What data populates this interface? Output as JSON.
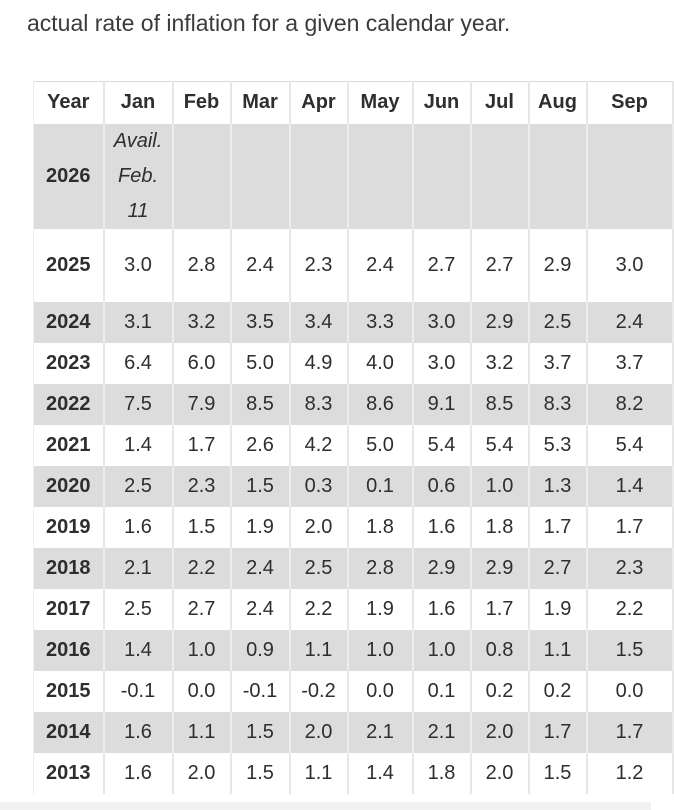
{
  "page": {
    "intro_text": "actual rate of inflation for a given calendar year."
  },
  "table": {
    "columns": [
      "Year",
      "Jan",
      "Feb",
      "Mar",
      "Apr",
      "May",
      "Jun",
      "Jul",
      "Aug",
      "Sep"
    ],
    "rows": [
      {
        "year": "2026",
        "note": "Avail. Feb. 11",
        "values": [
          "",
          "",
          "",
          "",
          "",
          "",
          "",
          "",
          ""
        ],
        "shaded": true
      },
      {
        "year": "2025",
        "values": [
          "3.0",
          "2.8",
          "2.4",
          "2.3",
          "2.4",
          "2.7",
          "2.7",
          "2.9",
          "3.0"
        ],
        "shaded": false,
        "tall": true
      },
      {
        "year": "2024",
        "values": [
          "3.1",
          "3.2",
          "3.5",
          "3.4",
          "3.3",
          "3.0",
          "2.9",
          "2.5",
          "2.4"
        ],
        "shaded": true
      },
      {
        "year": "2023",
        "values": [
          "6.4",
          "6.0",
          "5.0",
          "4.9",
          "4.0",
          "3.0",
          "3.2",
          "3.7",
          "3.7"
        ],
        "shaded": false
      },
      {
        "year": "2022",
        "values": [
          "7.5",
          "7.9",
          "8.5",
          "8.3",
          "8.6",
          "9.1",
          "8.5",
          "8.3",
          "8.2"
        ],
        "shaded": true
      },
      {
        "year": "2021",
        "values": [
          "1.4",
          "1.7",
          "2.6",
          "4.2",
          "5.0",
          "5.4",
          "5.4",
          "5.3",
          "5.4"
        ],
        "shaded": false
      },
      {
        "year": "2020",
        "values": [
          "2.5",
          "2.3",
          "1.5",
          "0.3",
          "0.1",
          "0.6",
          "1.0",
          "1.3",
          "1.4"
        ],
        "shaded": true
      },
      {
        "year": "2019",
        "values": [
          "1.6",
          "1.5",
          "1.9",
          "2.0",
          "1.8",
          "1.6",
          "1.8",
          "1.7",
          "1.7"
        ],
        "shaded": false
      },
      {
        "year": "2018",
        "values": [
          "2.1",
          "2.2",
          "2.4",
          "2.5",
          "2.8",
          "2.9",
          "2.9",
          "2.7",
          "2.3"
        ],
        "shaded": true
      },
      {
        "year": "2017",
        "values": [
          "2.5",
          "2.7",
          "2.4",
          "2.2",
          "1.9",
          "1.6",
          "1.7",
          "1.9",
          "2.2"
        ],
        "shaded": false
      },
      {
        "year": "2016",
        "values": [
          "1.4",
          "1.0",
          "0.9",
          "1.1",
          "1.0",
          "1.0",
          "0.8",
          "1.1",
          "1.5"
        ],
        "shaded": true
      },
      {
        "year": "2015",
        "values": [
          "-0.1",
          "0.0",
          "-0.1",
          "-0.2",
          "0.0",
          "0.1",
          "0.2",
          "0.2",
          "0.0"
        ],
        "shaded": false
      },
      {
        "year": "2014",
        "values": [
          "1.6",
          "1.1",
          "1.5",
          "2.0",
          "2.1",
          "2.1",
          "2.0",
          "1.7",
          "1.7"
        ],
        "shaded": true
      },
      {
        "year": "2013",
        "values": [
          "1.6",
          "2.0",
          "1.5",
          "1.1",
          "1.4",
          "1.8",
          "2.0",
          "1.5",
          "1.2"
        ],
        "shaded": false
      }
    ]
  },
  "colors": {
    "shaded_row_bg": "#dcdcdc",
    "table_text": "#2e2e2e",
    "intro_text": "#3b3b3b",
    "scrollbar_track": "#f1f1f1"
  }
}
